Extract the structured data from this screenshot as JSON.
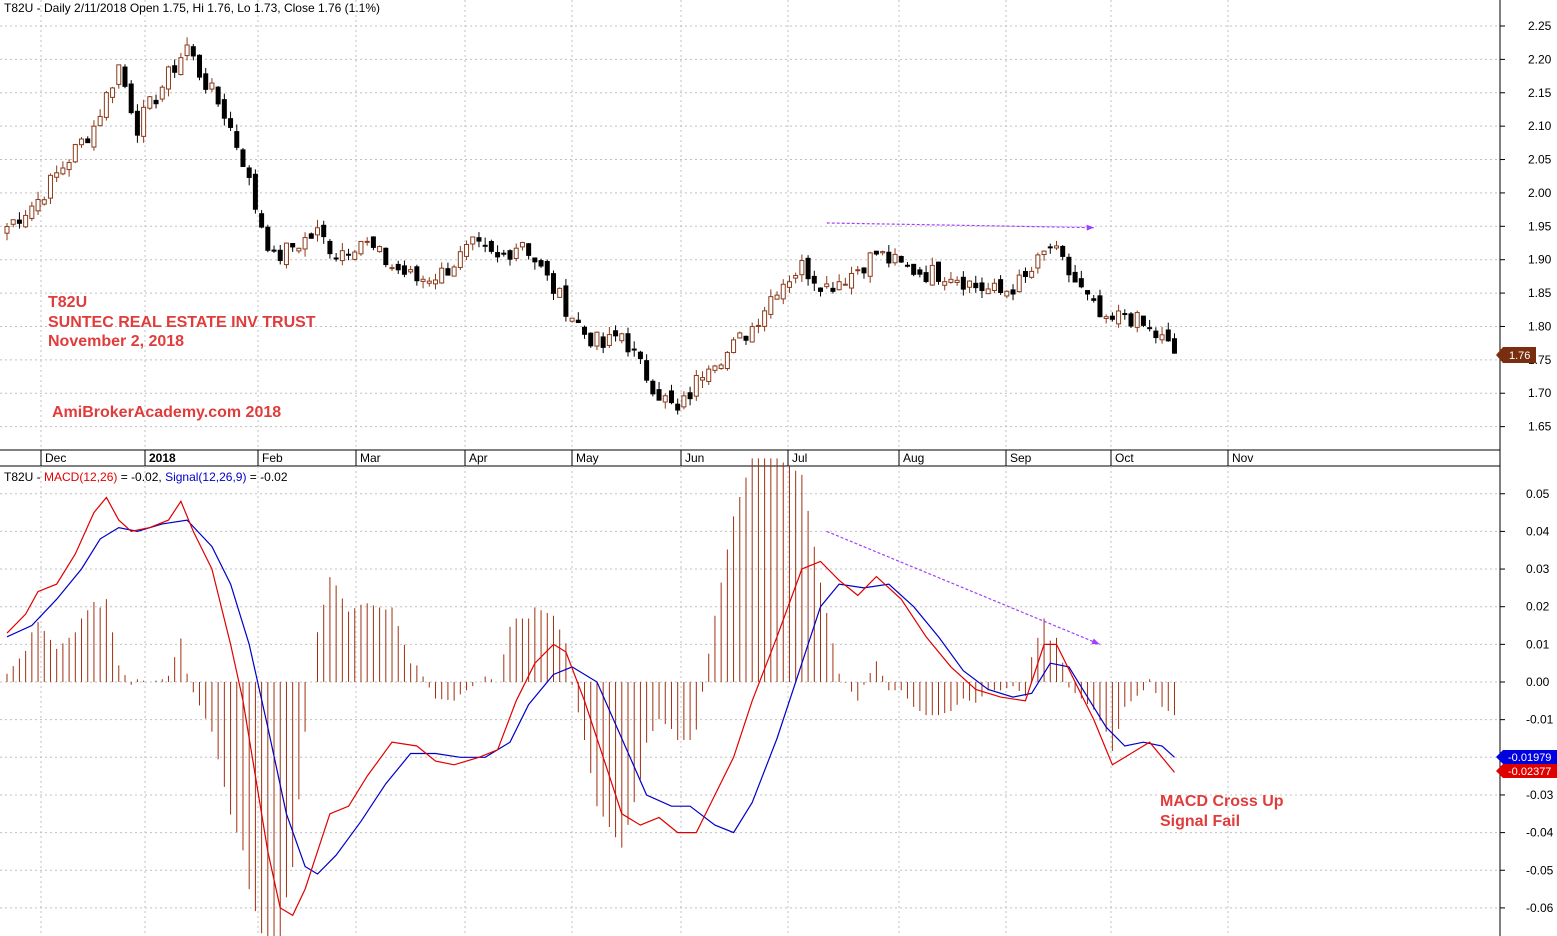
{
  "colors": {
    "up_body": "#8b3a1a",
    "down_body": "#000000",
    "macd_line": "#e00000",
    "signal_line": "#0000c8",
    "histogram": "#a03010",
    "trend_arrow": "#a040ff",
    "annotation": "#e03c3c",
    "grid": "#c0c0c0"
  },
  "price_panel": {
    "header_symbol": "T82U",
    "header_text": " - Daily 2/11/2018 Open 1.75, Hi 1.76, Lo 1.73, Close 1.76 (1.1%)",
    "annotation_lines": [
      "T82U",
      "SUNTEC REAL ESTATE INV TRUST",
      "November 2, 2018"
    ],
    "watermark": "AmiBrokerAcademy.com  2018",
    "last_price_tag": "1.76"
  },
  "macd_panel": {
    "header_symbol": "T82U",
    "header_sep": " - ",
    "macd_label": "MACD(12,26)",
    "macd_value": " = -0.02, ",
    "signal_label": "Signal(12,26,9)",
    "signal_value": " = -0.02",
    "signal_tag": "-0.01979",
    "macd_tag": "-0.02377",
    "annotation_lines": [
      "MACD Cross Up",
      "Signal Fail"
    ]
  },
  "chart_data": [
    {
      "type": "candlestick",
      "symbol": "T82U",
      "ylim": [
        1.61,
        2.28
      ],
      "y_ticks": [
        "2.25",
        "2.20",
        "2.15",
        "2.10",
        "2.05",
        "2.00",
        "1.95",
        "1.90",
        "1.85",
        "1.80",
        "1.75",
        "1.70",
        "1.65"
      ],
      "x_labels": [
        "Dec",
        "2018",
        "Feb",
        "Mar",
        "Apr",
        "May",
        "Jun",
        "Jul",
        "Aug",
        "Sep",
        "Oct",
        "Nov"
      ],
      "close_path": [
        [
          0,
          1.95
        ],
        [
          5,
          1.99
        ],
        [
          9,
          2.04
        ],
        [
          14,
          2.1
        ],
        [
          18,
          2.19
        ],
        [
          21,
          2.1
        ],
        [
          25,
          2.16
        ],
        [
          29,
          2.22
        ],
        [
          31,
          2.18
        ],
        [
          35,
          2.12
        ],
        [
          38,
          2.05
        ],
        [
          40,
          1.98
        ],
        [
          43,
          1.9
        ],
        [
          46,
          1.92
        ],
        [
          50,
          1.94
        ],
        [
          53,
          1.91
        ],
        [
          57,
          1.93
        ],
        [
          62,
          1.89
        ],
        [
          66,
          1.87
        ],
        [
          70,
          1.88
        ],
        [
          75,
          1.92
        ],
        [
          79,
          1.9
        ],
        [
          83,
          1.93
        ],
        [
          87,
          1.87
        ],
        [
          90,
          1.83
        ],
        [
          93,
          1.79
        ],
        [
          96,
          1.77
        ],
        [
          99,
          1.79
        ],
        [
          102,
          1.74
        ],
        [
          105,
          1.7
        ],
        [
          108,
          1.67
        ],
        [
          110,
          1.7
        ],
        [
          113,
          1.75
        ],
        [
          116,
          1.76
        ],
        [
          120,
          1.8
        ],
        [
          124,
          1.86
        ],
        [
          128,
          1.89
        ],
        [
          132,
          1.86
        ],
        [
          136,
          1.88
        ],
        [
          140,
          1.91
        ],
        [
          144,
          1.89
        ],
        [
          148,
          1.88
        ],
        [
          152,
          1.88
        ],
        [
          156,
          1.86
        ],
        [
          160,
          1.85
        ],
        [
          164,
          1.87
        ],
        [
          168,
          1.92
        ],
        [
          171,
          1.88
        ],
        [
          174,
          1.84
        ],
        [
          177,
          1.8
        ],
        [
          180,
          1.82
        ],
        [
          183,
          1.8
        ],
        [
          186,
          1.78
        ],
        [
          188,
          1.76
        ]
      ],
      "arrow": {
        "from": [
          132,
          1.955
        ],
        "to": [
          175,
          1.948
        ]
      },
      "last_close": 1.76
    },
    {
      "type": "line",
      "title": "MACD",
      "ylim": [
        -0.066,
        0.063
      ],
      "y_ticks": [
        "0.05",
        "0.04",
        "0.03",
        "0.02",
        "0.01",
        "0.00",
        "-0.01",
        "-0.02",
        "-0.03",
        "-0.04",
        "-0.05",
        "-0.06"
      ],
      "series": [
        {
          "name": "MACD(12,26)",
          "values": [
            [
              0,
              0.013
            ],
            [
              3,
              0.018
            ],
            [
              5,
              0.024
            ],
            [
              8,
              0.026
            ],
            [
              11,
              0.034
            ],
            [
              14,
              0.045
            ],
            [
              16,
              0.049
            ],
            [
              18,
              0.043
            ],
            [
              20,
              0.04
            ],
            [
              23,
              0.041
            ],
            [
              26,
              0.043
            ],
            [
              28,
              0.048
            ],
            [
              30,
              0.04
            ],
            [
              33,
              0.03
            ],
            [
              36,
              0.01
            ],
            [
              38,
              -0.005
            ],
            [
              40,
              -0.025
            ],
            [
              42,
              -0.045
            ],
            [
              44,
              -0.06
            ],
            [
              46,
              -0.062
            ],
            [
              48,
              -0.055
            ],
            [
              50,
              -0.045
            ],
            [
              52,
              -0.035
            ],
            [
              55,
              -0.033
            ],
            [
              58,
              -0.025
            ],
            [
              62,
              -0.016
            ],
            [
              66,
              -0.017
            ],
            [
              69,
              -0.021
            ],
            [
              72,
              -0.022
            ],
            [
              76,
              -0.02
            ],
            [
              79,
              -0.018
            ],
            [
              82,
              -0.005
            ],
            [
              85,
              0.005
            ],
            [
              88,
              0.01
            ],
            [
              90,
              0.008
            ],
            [
              93,
              -0.005
            ],
            [
              96,
              -0.02
            ],
            [
              99,
              -0.035
            ],
            [
              102,
              -0.038
            ],
            [
              105,
              -0.036
            ],
            [
              108,
              -0.04
            ],
            [
              111,
              -0.04
            ],
            [
              114,
              -0.03
            ],
            [
              117,
              -0.02
            ],
            [
              120,
              -0.005
            ],
            [
              124,
              0.012
            ],
            [
              128,
              0.03
            ],
            [
              131,
              0.032
            ],
            [
              134,
              0.027
            ],
            [
              137,
              0.023
            ],
            [
              140,
              0.028
            ],
            [
              144,
              0.022
            ],
            [
              148,
              0.012
            ],
            [
              152,
              0.004
            ],
            [
              156,
              -0.002
            ],
            [
              160,
              -0.004
            ],
            [
              164,
              -0.005
            ],
            [
              167,
              0.01
            ],
            [
              169,
              0.01
            ],
            [
              172,
              0.0
            ],
            [
              175,
              -0.01
            ],
            [
              178,
              -0.022
            ],
            [
              181,
              -0.019
            ],
            [
              184,
              -0.016
            ],
            [
              186,
              -0.02
            ],
            [
              188,
              -0.024
            ]
          ]
        },
        {
          "name": "Signal(12,26,9)",
          "values": [
            [
              0,
              0.012
            ],
            [
              4,
              0.015
            ],
            [
              8,
              0.022
            ],
            [
              12,
              0.03
            ],
            [
              15,
              0.038
            ],
            [
              18,
              0.041
            ],
            [
              21,
              0.04
            ],
            [
              25,
              0.042
            ],
            [
              29,
              0.043
            ],
            [
              33,
              0.036
            ],
            [
              36,
              0.026
            ],
            [
              39,
              0.01
            ],
            [
              42,
              -0.012
            ],
            [
              45,
              -0.035
            ],
            [
              48,
              -0.049
            ],
            [
              50,
              -0.051
            ],
            [
              53,
              -0.046
            ],
            [
              57,
              -0.037
            ],
            [
              61,
              -0.027
            ],
            [
              65,
              -0.019
            ],
            [
              69,
              -0.019
            ],
            [
              73,
              -0.02
            ],
            [
              77,
              -0.02
            ],
            [
              81,
              -0.016
            ],
            [
              84,
              -0.006
            ],
            [
              88,
              0.002
            ],
            [
              91,
              0.004
            ],
            [
              95,
              0.0
            ],
            [
              99,
              -0.015
            ],
            [
              103,
              -0.03
            ],
            [
              107,
              -0.033
            ],
            [
              110,
              -0.033
            ],
            [
              114,
              -0.038
            ],
            [
              117,
              -0.04
            ],
            [
              120,
              -0.032
            ],
            [
              124,
              -0.015
            ],
            [
              128,
              0.005
            ],
            [
              131,
              0.02
            ],
            [
              134,
              0.026
            ],
            [
              138,
              0.025
            ],
            [
              142,
              0.026
            ],
            [
              146,
              0.02
            ],
            [
              150,
              0.012
            ],
            [
              154,
              0.003
            ],
            [
              158,
              -0.002
            ],
            [
              162,
              -0.004
            ],
            [
              165,
              -0.003
            ],
            [
              168,
              0.005
            ],
            [
              171,
              0.004
            ],
            [
              174,
              -0.004
            ],
            [
              177,
              -0.012
            ],
            [
              180,
              -0.017
            ],
            [
              183,
              -0.016
            ],
            [
              186,
              -0.017
            ],
            [
              188,
              -0.02
            ]
          ]
        }
      ],
      "histogram": "MACD - Signal",
      "arrow": {
        "from": [
          132,
          0.04
        ],
        "to": [
          176,
          0.01
        ]
      }
    }
  ]
}
